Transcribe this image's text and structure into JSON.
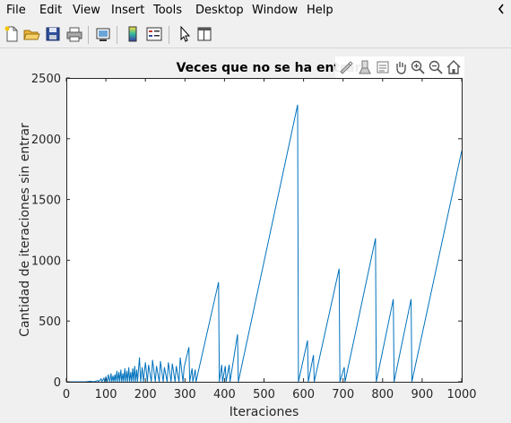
{
  "menu": {
    "items": [
      "File",
      "Edit",
      "View",
      "Insert",
      "Tools",
      "Desktop",
      "Window",
      "Help"
    ],
    "arrow_icon": "chevron-left-icon"
  },
  "toolbar": {
    "icons": [
      "new-file-icon",
      "open-folder-icon",
      "save-icon",
      "print-icon",
      "link-plot-icon",
      "colorbar-icon",
      "legend-icon",
      "pointer-icon",
      "property-editor-icon"
    ]
  },
  "axes_toolbar": {
    "icons": [
      "brush-icon",
      "data-tips-icon",
      "legend-toggle-icon",
      "pan-icon",
      "zoom-in-icon",
      "zoom-out-icon",
      "home-icon"
    ]
  },
  "chart_data": {
    "type": "line",
    "title": "Veces que no se ha entrar",
    "xlabel": "Iteraciones",
    "ylabel": "Cantidad de iteraciones sin entrar",
    "xlim": [
      0,
      1000
    ],
    "ylim": [
      0,
      2500
    ],
    "xticks": [
      0,
      100,
      200,
      300,
      400,
      500,
      600,
      700,
      800,
      900,
      1000
    ],
    "yticks": [
      0,
      500,
      1000,
      1500,
      2000,
      2500
    ],
    "grid": false,
    "series_color": "#0072bd",
    "x": [
      0,
      50,
      60,
      70,
      80,
      82,
      88,
      90,
      95,
      97,
      100,
      104,
      106,
      110,
      113,
      115,
      118,
      120,
      123,
      125,
      128,
      130,
      133,
      135,
      138,
      140,
      143,
      145,
      148,
      150,
      153,
      155,
      158,
      160,
      163,
      165,
      168,
      170,
      173,
      175,
      178,
      180,
      185,
      188,
      192,
      195,
      200,
      205,
      208,
      215,
      218,
      225,
      228,
      235,
      238,
      245,
      248,
      255,
      258,
      265,
      268,
      275,
      278,
      285,
      288,
      295,
      298,
      310,
      312,
      318,
      320,
      326,
      328,
      385,
      387,
      393,
      395,
      402,
      404,
      412,
      414,
      433,
      435,
      585,
      587,
      610,
      612,
      625,
      627,
      690,
      692,
      703,
      705,
      782,
      784,
      827,
      829,
      872,
      874,
      1000
    ],
    "y": [
      0,
      0,
      5,
      0,
      10,
      0,
      25,
      0,
      30,
      0,
      40,
      0,
      60,
      0,
      70,
      0,
      50,
      0,
      60,
      0,
      90,
      0,
      80,
      0,
      100,
      0,
      70,
      0,
      110,
      0,
      90,
      0,
      120,
      0,
      80,
      0,
      110,
      0,
      130,
      0,
      100,
      0,
      200,
      0,
      120,
      0,
      160,
      0,
      140,
      0,
      180,
      0,
      130,
      0,
      170,
      0,
      120,
      0,
      160,
      0,
      150,
      0,
      130,
      0,
      200,
      0,
      120,
      285,
      0,
      110,
      0,
      100,
      0,
      820,
      0,
      140,
      0,
      130,
      0,
      140,
      0,
      390,
      0,
      2280,
      0,
      340,
      0,
      220,
      0,
      930,
      0,
      120,
      0,
      1180,
      0,
      680,
      0,
      680,
      0,
      1900
    ]
  }
}
